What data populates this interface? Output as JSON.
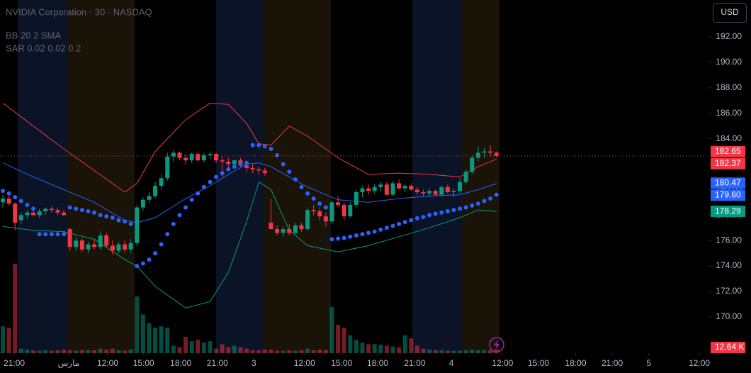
{
  "chart_data": {
    "type": "candlestick",
    "title": "NVIDIA Corporation · 30 · NASDAQ",
    "indicators": [
      "BB 20 2 SMA",
      "SAR 0.02 0.02 0.2"
    ],
    "currency": "USD",
    "up_color": "#089981",
    "down_color": "#f23645",
    "xlim": [
      -0.47,
      115.8
    ],
    "xticks": [
      {
        "value": 1.86,
        "label": "21:00"
      },
      {
        "value": 10.8,
        "label": "مارس"
      },
      {
        "value": 17.2,
        "label": "12:00"
      },
      {
        "value": 23.1,
        "label": "15:00"
      },
      {
        "value": 29.2,
        "label": "18:00"
      },
      {
        "value": 35.2,
        "label": "21:00"
      },
      {
        "value": 41.2,
        "label": "3"
      },
      {
        "value": 49.5,
        "label": "12:00"
      },
      {
        "value": 55.6,
        "label": "15:00"
      },
      {
        "value": 61.5,
        "label": "18:00"
      },
      {
        "value": 67.6,
        "label": "21:00"
      },
      {
        "value": 73.6,
        "label": "4"
      },
      {
        "value": 82,
        "label": "12:00"
      },
      {
        "value": 87.9,
        "label": "15:00"
      },
      {
        "value": 94,
        "label": "18:00"
      },
      {
        "value": 100,
        "label": "21:00"
      },
      {
        "value": 106,
        "label": "5"
      },
      {
        "value": 114.3,
        "label": "12:00"
      }
    ],
    "ylim": [
      167.15,
      194.9
    ],
    "yticks": [
      {
        "value": 170,
        "label": "170.00"
      },
      {
        "value": 172,
        "label": "172.00"
      },
      {
        "value": 174,
        "label": "174.00"
      },
      {
        "value": 176,
        "label": "176.00"
      },
      {
        "value": 178,
        "label": "178.00"
      },
      {
        "value": 180,
        "label": "180.00"
      },
      {
        "value": 182,
        "label": "182.00"
      },
      {
        "value": 184,
        "label": "184.00"
      },
      {
        "value": 186,
        "label": "186.00"
      },
      {
        "value": 188,
        "label": "188.00"
      },
      {
        "value": 190,
        "label": "190.00"
      },
      {
        "value": 192,
        "label": "192.00"
      }
    ],
    "candles": {
      "open": [
        179.0,
        179.3,
        178.9,
        177.6,
        178.0,
        178.2,
        178.0,
        178.3,
        178.5,
        178.4,
        178.2,
        176.9,
        175.5,
        176.0,
        175.3,
        175.7,
        175.5,
        176.4,
        175.6,
        175.2,
        175.7,
        175.3,
        175.8,
        178.6,
        179.2,
        179.5,
        180.3,
        180.9,
        182.6,
        182.9,
        182.5,
        182.3,
        182.8,
        182.3,
        182.7,
        182.8,
        182.3,
        182.2,
        182.0,
        182.3,
        181.9,
        181.7,
        181.6,
        181.5,
        177.4,
        176.9,
        176.6,
        176.9,
        176.6,
        177.2,
        176.9,
        178.4,
        178.3,
        177.9,
        177.5,
        179.0,
        178.8,
        177.9,
        178.8,
        179.8,
        180.1,
        179.9,
        180.2,
        180.4,
        179.6,
        180.5,
        180.1,
        180.3,
        180.0,
        179.8,
        179.7,
        179.9,
        179.6,
        180.2,
        179.8,
        179.9,
        180.6,
        181.4,
        182.5,
        182.9,
        183.0,
        182.9
      ],
      "high": [
        179.6,
        179.7,
        179.0,
        178.2,
        178.4,
        178.6,
        178.5,
        178.6,
        178.7,
        178.6,
        178.4,
        177.0,
        176.3,
        176.2,
        175.9,
        176.1,
        176.7,
        176.6,
        176.0,
        175.9,
        176.0,
        176.1,
        178.8,
        179.4,
        179.8,
        180.6,
        181.2,
        182.9,
        183.1,
        183.0,
        182.8,
        182.9,
        183.0,
        182.9,
        183.0,
        182.9,
        182.6,
        182.5,
        182.4,
        182.5,
        182.1,
        182.0,
        181.8,
        181.7,
        179.3,
        177.2,
        177.1,
        177.3,
        177.4,
        177.4,
        178.6,
        178.8,
        178.6,
        178.2,
        179.2,
        179.5,
        179.0,
        179.0,
        180.0,
        180.3,
        180.4,
        180.4,
        180.6,
        180.6,
        180.7,
        180.8,
        180.4,
        180.5,
        180.2,
        180.0,
        180.1,
        180.0,
        180.3,
        180.4,
        180.1,
        180.9,
        181.6,
        182.7,
        183.4,
        183.3,
        183.5,
        183.0
      ],
      "low": [
        178.6,
        178.7,
        176.8,
        177.3,
        177.7,
        177.9,
        177.8,
        178.0,
        178.2,
        178.0,
        177.9,
        175.2,
        175.2,
        175.1,
        175.0,
        175.3,
        175.3,
        175.4,
        174.9,
        175.0,
        175.1,
        175.0,
        175.6,
        178.3,
        178.9,
        179.3,
        180.0,
        180.7,
        182.2,
        182.3,
        182.0,
        182.1,
        182.2,
        182.1,
        182.4,
        182.1,
        181.0,
        181.8,
        181.7,
        181.8,
        181.4,
        181.3,
        181.2,
        181.1,
        176.9,
        176.4,
        176.3,
        176.4,
        176.5,
        176.7,
        176.8,
        178.0,
        177.6,
        177.1,
        177.3,
        178.6,
        177.6,
        177.8,
        178.6,
        179.4,
        179.6,
        179.7,
        179.9,
        179.5,
        179.5,
        180.0,
        179.8,
        179.9,
        179.6,
        179.5,
        179.4,
        179.5,
        179.5,
        179.7,
        179.4,
        179.7,
        180.4,
        181.2,
        182.2,
        182.5,
        182.6,
        182.5
      ],
      "close": [
        179.3,
        178.9,
        177.4,
        178.0,
        178.2,
        178.0,
        178.3,
        178.5,
        178.4,
        178.2,
        178.0,
        175.5,
        176.0,
        175.3,
        175.7,
        175.5,
        176.4,
        175.6,
        175.2,
        175.7,
        175.3,
        175.8,
        178.6,
        179.2,
        179.5,
        180.3,
        180.9,
        182.6,
        182.9,
        182.5,
        182.3,
        182.8,
        182.3,
        182.7,
        182.8,
        182.3,
        182.2,
        182.0,
        182.3,
        181.9,
        181.7,
        181.6,
        181.5,
        181.3,
        176.9,
        176.6,
        176.9,
        176.6,
        177.2,
        176.9,
        178.4,
        178.3,
        177.9,
        177.5,
        179.0,
        178.8,
        177.9,
        178.8,
        179.8,
        180.1,
        179.9,
        180.2,
        180.4,
        179.6,
        180.5,
        180.1,
        180.3,
        180.0,
        179.8,
        179.7,
        179.9,
        179.6,
        180.2,
        179.8,
        179.9,
        180.6,
        181.4,
        182.5,
        182.9,
        183.0,
        182.9,
        182.65
      ]
    },
    "volume": {
      "vlim": [
        0,
        1185
      ],
      "values": [
        90,
        85,
        300,
        15,
        12,
        10,
        8,
        10,
        8,
        10,
        12,
        10,
        8,
        10,
        10,
        10,
        15,
        12,
        15,
        10,
        8,
        12,
        190,
        130,
        100,
        85,
        90,
        85,
        25,
        20,
        55,
        40,
        45,
        35,
        40,
        15,
        30,
        20,
        25,
        20,
        15,
        10,
        10,
        12,
        12,
        8,
        8,
        10,
        8,
        10,
        15,
        10,
        12,
        10,
        155,
        95,
        85,
        60,
        45,
        35,
        30,
        30,
        28,
        25,
        22,
        20,
        60,
        50,
        25,
        15,
        12,
        10,
        10,
        8,
        8,
        8,
        10,
        12,
        10,
        10,
        10,
        12.64
      ],
      "last_value": 12.64,
      "last_label": "12.64 K"
    },
    "bollinger": {
      "colors": [
        "#f23645",
        "#2962ff",
        "#089981"
      ],
      "x": [
        0,
        5,
        10,
        15,
        20,
        22,
        25,
        30,
        34,
        37,
        40,
        42,
        44,
        47,
        50,
        55,
        60,
        65,
        70,
        75,
        78,
        81
      ],
      "upper": [
        186.8,
        185.0,
        183.2,
        181.5,
        179.8,
        180.5,
        183.0,
        185.5,
        186.8,
        186.7,
        185.2,
        183.6,
        183.5,
        185.0,
        184.2,
        182.5,
        181.2,
        181.3,
        181.2,
        181.0,
        181.8,
        182.4
      ],
      "middle": [
        182.1,
        181.0,
        180.0,
        179.0,
        177.6,
        177.4,
        177.8,
        179.3,
        180.3,
        181.2,
        182.0,
        182.1,
        181.8,
        181.0,
        180.2,
        179.2,
        179.0,
        179.3,
        179.5,
        179.6,
        180.0,
        180.47
      ],
      "lower": [
        177.1,
        176.8,
        176.7,
        176.1,
        174.5,
        174.0,
        172.4,
        170.7,
        171.2,
        173.5,
        177.5,
        180.6,
        180.0,
        176.8,
        175.6,
        175.1,
        175.6,
        176.3,
        177.0,
        177.8,
        178.4,
        178.29
      ]
    },
    "sar": {
      "color": "#2962ff",
      "values": [
        179.9,
        179.7,
        179.4,
        179.1,
        178.8,
        178.5,
        176.5,
        176.5,
        176.5,
        176.5,
        176.5,
        178.6,
        178.5,
        178.4,
        178.3,
        178.2,
        178.0,
        177.9,
        177.8,
        177.6,
        177.5,
        177.3,
        174.0,
        174.2,
        174.5,
        175.0,
        175.7,
        176.5,
        177.3,
        178.0,
        178.6,
        179.2,
        179.7,
        180.2,
        180.6,
        181.0,
        181.3,
        181.6,
        181.8,
        182.0,
        182.1,
        183.5,
        183.5,
        183.4,
        183.2,
        182.7,
        182.0,
        181.4,
        180.8,
        180.2,
        179.7,
        179.3,
        178.9,
        178.6,
        176.1,
        176.15,
        176.2,
        176.3,
        176.4,
        176.5,
        176.6,
        176.7,
        176.85,
        177.0,
        177.15,
        177.3,
        177.45,
        177.6,
        177.75,
        177.85,
        178.0,
        178.1,
        178.2,
        178.3,
        178.4,
        178.5,
        178.6,
        178.75,
        178.9,
        179.1,
        179.3,
        179.6
      ]
    },
    "last_values": {
      "values": [
        182.65,
        182.37,
        180.47,
        179.6,
        178.29
      ],
      "value_labels": [
        "182.65",
        "182.37",
        "180.47",
        "179.60",
        "178.29"
      ],
      "colors": [
        "#f23645",
        "#f23645",
        "#2962ff",
        "#2962ff",
        "#089981"
      ]
    }
  }
}
